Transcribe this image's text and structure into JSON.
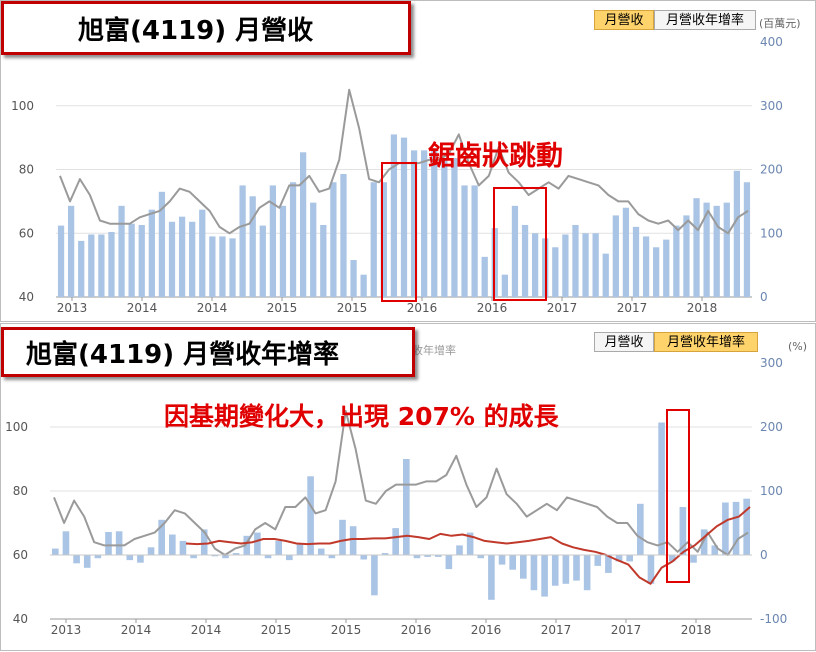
{
  "charts": {
    "monthly_revenue": {
      "title": "旭富(4119) 月營收",
      "tabs": [
        "月營收",
        "月營收年增率"
      ],
      "active_tab": 0,
      "unit": "(百萬元)",
      "annotation": "鋸齒狀跳動",
      "colors": {
        "bar": "#a9c4e4",
        "price": "#9a9a9a",
        "annotation": "#e00000"
      }
    },
    "yoy_growth": {
      "title": "旭富(4119) 月營收年增率",
      "tabs": [
        "月營收",
        "月營收年增率"
      ],
      "active_tab": 1,
      "unit": "(%)",
      "annotation": "因基期變化大，出現 207% 的成長",
      "ghost_text": "收年增率",
      "colors": {
        "bar": "#a9c4e4",
        "price": "#9a9a9a",
        "growth_line": "#c0392b"
      }
    }
  },
  "chart_data": [
    {
      "type": "bar",
      "title": "旭富(4119) 月營收",
      "x_tick_labels": [
        "2013",
        "2014",
        "2014",
        "2015",
        "2015",
        "2016",
        "2016",
        "2017",
        "2017",
        "2018"
      ],
      "y_left_ticks": [
        40,
        60,
        80,
        100
      ],
      "y_right_ticks": [
        0,
        100,
        200,
        300,
        400
      ],
      "y_left_range": [
        40,
        120
      ],
      "y_right_range": [
        0,
        400
      ],
      "series": [
        {
          "name": "月營收",
          "axis": "right",
          "type": "bar",
          "values": [
            112,
            143,
            88,
            98,
            98,
            102,
            143,
            115,
            113,
            137,
            165,
            118,
            126,
            118,
            137,
            95,
            95,
            92,
            175,
            158,
            112,
            175,
            143,
            180,
            227,
            148,
            113,
            180,
            193,
            58,
            35,
            180,
            180,
            255,
            250,
            230,
            230,
            230,
            218,
            218,
            175,
            175,
            63,
            108,
            35,
            143,
            113,
            100,
            92,
            78,
            98,
            113,
            100,
            100,
            68,
            128,
            140,
            110,
            95,
            78,
            90,
            112,
            128,
            155,
            148,
            143,
            148,
            198,
            180
          ]
        },
        {
          "name": "股價",
          "axis": "left",
          "type": "line",
          "values": [
            78,
            70,
            77,
            72,
            64,
            63,
            63,
            63,
            65,
            66,
            67,
            70,
            74,
            73,
            70,
            67,
            62,
            60,
            62,
            63,
            68,
            70,
            68,
            75,
            75,
            78,
            73,
            74,
            83,
            105,
            93,
            77,
            76,
            80,
            82,
            82,
            82,
            83,
            83,
            85,
            91,
            82,
            75,
            78,
            87,
            79,
            76,
            72,
            74,
            76,
            74,
            78,
            77,
            76,
            75,
            72,
            70,
            70,
            66,
            64,
            63,
            64,
            61,
            64,
            61,
            67,
            62,
            60,
            65,
            67
          ]
        }
      ]
    },
    {
      "type": "bar",
      "title": "旭富(4119) 月營收年增率",
      "x_tick_labels": [
        "2013",
        "2014",
        "2014",
        "2015",
        "2015",
        "2016",
        "2016",
        "2017",
        "2017",
        "2018"
      ],
      "y_left_ticks": [
        40,
        60,
        80,
        100
      ],
      "y_right_ticks": [
        -100,
        0,
        100,
        200,
        300
      ],
      "y_left_range": [
        40,
        120
      ],
      "y_right_range": [
        -100,
        300
      ],
      "series": [
        {
          "name": "月營收年增率",
          "axis": "right",
          "type": "bar",
          "values": [
            10,
            37,
            -13,
            -20,
            -5,
            36,
            37,
            -8,
            -12,
            12,
            55,
            32,
            22,
            -5,
            40,
            -2,
            -5,
            3,
            30,
            35,
            -5,
            22,
            -8,
            18,
            123,
            10,
            -5,
            55,
            45,
            -7,
            -63,
            3,
            42,
            150,
            -5,
            -3,
            -3,
            -22,
            15,
            35,
            -5,
            -70,
            -15,
            -23,
            -37,
            -55,
            -65,
            -48,
            -45,
            -40,
            -55,
            -17,
            -28,
            -10,
            -10,
            80,
            -45,
            207,
            -10,
            75,
            -12,
            40,
            15,
            82,
            83,
            88
          ]
        },
        {
          "name": "股價",
          "axis": "left",
          "type": "line",
          "values": [
            78,
            70,
            77,
            72,
            64,
            63,
            63,
            63,
            65,
            66,
            67,
            70,
            74,
            73,
            70,
            67,
            62,
            60,
            62,
            63,
            68,
            70,
            68,
            75,
            75,
            78,
            73,
            74,
            83,
            105,
            93,
            77,
            76,
            80,
            82,
            82,
            82,
            83,
            83,
            85,
            91,
            82,
            75,
            78,
            87,
            79,
            76,
            72,
            74,
            76,
            74,
            78,
            77,
            76,
            75,
            72,
            70,
            70,
            66,
            64,
            63,
            64,
            61,
            64,
            61,
            67,
            62,
            60,
            65,
            67
          ]
        },
        {
          "name": "年增率均線",
          "axis": "right",
          "type": "line",
          "values": [
            18,
            17,
            18,
            22,
            20,
            18,
            20,
            25,
            25,
            22,
            18,
            17,
            18,
            18,
            22,
            25,
            25,
            26,
            26,
            28,
            30,
            28,
            25,
            33,
            30,
            32,
            28,
            22,
            20,
            18,
            20,
            22,
            25,
            28,
            18,
            12,
            8,
            5,
            0,
            -8,
            -15,
            -35,
            -45,
            -20,
            -10,
            5,
            15,
            30,
            45,
            55,
            60,
            75
          ]
        }
      ]
    }
  ]
}
